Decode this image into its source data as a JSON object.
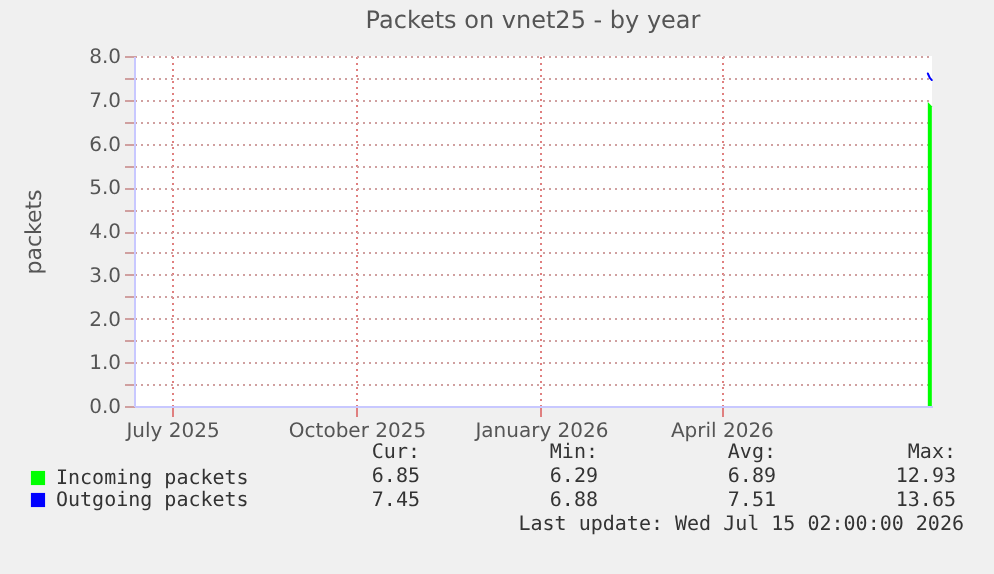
{
  "chart_data": {
    "type": "line",
    "title": "Packets on vnet25 - by year",
    "ylabel": "packets",
    "xlim": [
      "2025-06-12",
      "2026-07-15T02:00"
    ],
    "xticks": [
      {
        "value": "2025-07-01",
        "label": "July 2025"
      },
      {
        "value": "2025-10-01",
        "label": "October 2025"
      },
      {
        "value": "2026-01-01",
        "label": "January 2026"
      },
      {
        "value": "2026-04-01",
        "label": "April 2026"
      }
    ],
    "ylim": [
      0,
      8
    ],
    "yticks": [
      {
        "value": 0,
        "label": "0.0"
      },
      {
        "value": 0.5,
        "label": null
      },
      {
        "value": 1,
        "label": "1.0"
      },
      {
        "value": 1.5,
        "label": null
      },
      {
        "value": 2,
        "label": "2.0"
      },
      {
        "value": 2.5,
        "label": null
      },
      {
        "value": 3,
        "label": "3.0"
      },
      {
        "value": 3.5,
        "label": null
      },
      {
        "value": 4,
        "label": "4.0"
      },
      {
        "value": 4.5,
        "label": null
      },
      {
        "value": 5,
        "label": "5.0"
      },
      {
        "value": 5.5,
        "label": null
      },
      {
        "value": 6,
        "label": "6.0"
      },
      {
        "value": 6.5,
        "label": null
      },
      {
        "value": 7,
        "label": "7.0"
      },
      {
        "value": 7.5,
        "label": null
      },
      {
        "value": 8,
        "label": "8.0"
      }
    ],
    "x": [
      "2026-07-13",
      "2026-07-14",
      "2026-07-15"
    ],
    "series": [
      {
        "name": "Incoming packets",
        "type": "area",
        "color": "#00ff00",
        "values": [
          6.95,
          6.9,
          6.85
        ]
      },
      {
        "name": "Outgoing packets",
        "type": "line",
        "color": "#0000ff",
        "values": [
          7.6,
          7.5,
          7.45
        ]
      }
    ],
    "grid": true,
    "legend": "bottom left",
    "annotations": [
      "Cur:",
      "Min:",
      "Avg:",
      "Max:",
      "6.85",
      "6.29",
      "6.89",
      "12.93",
      "7.45",
      "6.88",
      "7.51",
      "13.65",
      "Last update: Wed Jul 15 02:00:00 2026"
    ]
  }
}
